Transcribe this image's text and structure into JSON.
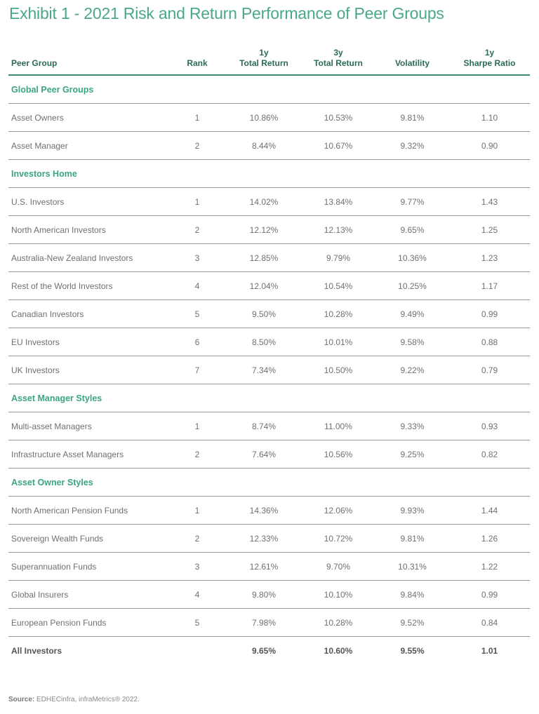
{
  "title": "Exhibit 1 - 2021 Risk and Return Performance of Peer Groups",
  "columns": [
    {
      "line1": "",
      "line2": "Peer Group"
    },
    {
      "line1": "",
      "line2": "Rank"
    },
    {
      "line1": "1y",
      "line2": "Total Return"
    },
    {
      "line1": "3y",
      "line2": "Total Return"
    },
    {
      "line1": "",
      "line2": "Volatility"
    },
    {
      "line1": "1y",
      "line2": "Sharpe Ratio"
    }
  ],
  "sections": [
    {
      "heading": "Global Peer Groups",
      "rows": [
        [
          "Asset Owners",
          "1",
          "10.86%",
          "10.53%",
          "9.81%",
          "1.10"
        ],
        [
          "Asset Manager",
          "2",
          "8.44%",
          "10.67%",
          "9.32%",
          "0.90"
        ]
      ]
    },
    {
      "heading": "Investors Home",
      "rows": [
        [
          "U.S. Investors",
          "1",
          "14.02%",
          "13.84%",
          "9.77%",
          "1.43"
        ],
        [
          "North American Investors",
          "2",
          "12.12%",
          "12.13%",
          "9.65%",
          "1.25"
        ],
        [
          "Australia-New Zealand Investors",
          "3",
          "12.85%",
          "9.79%",
          "10.36%",
          "1.23"
        ],
        [
          "Rest of the World Investors",
          "4",
          "12.04%",
          "10.54%",
          "10.25%",
          "1.17"
        ],
        [
          "Canadian Investors",
          "5",
          "9.50%",
          "10.28%",
          "9.49%",
          "0.99"
        ],
        [
          "EU Investors",
          "6",
          "8.50%",
          "10.01%",
          "9.58%",
          "0.88"
        ],
        [
          "UK Investors",
          "7",
          "7.34%",
          "10.50%",
          "9.22%",
          "0.79"
        ]
      ]
    },
    {
      "heading": "Asset Manager Styles",
      "rows": [
        [
          "Multi-asset Managers",
          "1",
          "8.74%",
          "11.00%",
          "9.33%",
          "0.93"
        ],
        [
          "Infrastructure Asset Managers",
          "2",
          "7.64%",
          "10.56%",
          "9.25%",
          "0.82"
        ]
      ]
    },
    {
      "heading": "Asset Owner Styles",
      "rows": [
        [
          "North American Pension Funds",
          "1",
          "14.36%",
          "12.06%",
          "9.93%",
          "1.44"
        ],
        [
          "Sovereign Wealth Funds",
          "2",
          "12.33%",
          "10.72%",
          "9.81%",
          "1.26"
        ],
        [
          "Superannuation Funds",
          "3",
          "12.61%",
          "9.70%",
          "10.31%",
          "1.22"
        ],
        [
          "Global Insurers",
          "4",
          "9.80%",
          "10.10%",
          "9.84%",
          "0.99"
        ],
        [
          "European Pension Funds",
          "5",
          "7.98%",
          "10.28%",
          "9.52%",
          "0.84"
        ]
      ]
    }
  ],
  "total": [
    "All Investors",
    "",
    "9.65%",
    "10.60%",
    "9.55%",
    "1.01"
  ],
  "source": {
    "label": "Source:",
    "text": " EDHECinfra, infraMetrics® 2022."
  },
  "colors": {
    "title": "#4aa88a",
    "section": "#3aa584",
    "header": "#2b6b55",
    "rule": "#3d8a6c"
  }
}
